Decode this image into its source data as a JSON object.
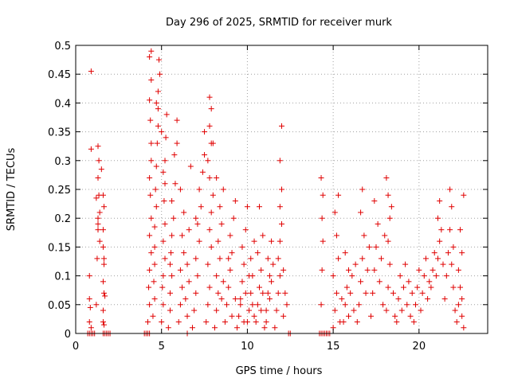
{
  "chart_data": {
    "type": "scatter",
    "title": "Day 296 of 2025, SRMTID for receiver murk",
    "xlabel": "GPS time / hours",
    "ylabel": "SRMTID / TECUs",
    "xlim": [
      0,
      24
    ],
    "ylim": [
      0,
      0.5
    ],
    "x_ticks": [
      "0",
      "5",
      "10",
      "15",
      "20"
    ],
    "y_ticks": [
      "0",
      "0.05",
      "0.1",
      "0.15",
      "0.2",
      "0.25",
      "0.3",
      "0.35",
      "0.4",
      "0.45",
      "0.5"
    ],
    "grid": true,
    "marker": "+",
    "color": "#e00000",
    "points": [
      [
        0.7,
        0.0
      ],
      [
        0.8,
        0.0
      ],
      [
        0.9,
        0.0
      ],
      [
        1.0,
        0.0
      ],
      [
        1.1,
        0.0
      ],
      [
        0.8,
        0.02
      ],
      [
        0.8,
        0.06
      ],
      [
        0.8,
        0.1
      ],
      [
        0.9,
        0.32
      ],
      [
        0.9,
        0.455
      ],
      [
        0.85,
        0.045
      ],
      [
        0.9,
        0.01
      ],
      [
        1.2,
        0.05
      ],
      [
        1.25,
        0.13
      ],
      [
        1.3,
        0.18
      ],
      [
        1.3,
        0.2
      ],
      [
        1.35,
        0.24
      ],
      [
        1.3,
        0.27
      ],
      [
        1.35,
        0.3
      ],
      [
        1.3,
        0.325
      ],
      [
        1.4,
        0.21
      ],
      [
        1.4,
        0.16
      ],
      [
        1.2,
        0.235
      ],
      [
        1.3,
        0.19
      ],
      [
        1.6,
        0.0
      ],
      [
        1.7,
        0.0
      ],
      [
        1.8,
        0.0
      ],
      [
        1.9,
        0.0
      ],
      [
        2.0,
        0.0
      ],
      [
        1.6,
        0.02
      ],
      [
        1.6,
        0.04
      ],
      [
        1.65,
        0.07
      ],
      [
        1.6,
        0.09
      ],
      [
        1.65,
        0.12
      ],
      [
        1.6,
        0.15
      ],
      [
        1.6,
        0.18
      ],
      [
        1.65,
        0.22
      ],
      [
        1.6,
        0.24
      ],
      [
        1.5,
        0.285
      ],
      [
        1.65,
        0.015
      ],
      [
        1.7,
        0.065
      ],
      [
        1.65,
        0.13
      ],
      [
        4.0,
        0.0
      ],
      [
        4.1,
        0.0
      ],
      [
        4.2,
        0.0
      ],
      [
        4.3,
        0.0
      ],
      [
        4.2,
        0.02
      ],
      [
        4.3,
        0.05
      ],
      [
        4.25,
        0.08
      ],
      [
        4.3,
        0.11
      ],
      [
        4.4,
        0.14
      ],
      [
        4.3,
        0.17
      ],
      [
        4.4,
        0.2
      ],
      [
        4.35,
        0.24
      ],
      [
        4.3,
        0.27
      ],
      [
        4.4,
        0.3
      ],
      [
        4.4,
        0.33
      ],
      [
        4.35,
        0.37
      ],
      [
        4.3,
        0.405
      ],
      [
        4.4,
        0.44
      ],
      [
        4.4,
        0.49
      ],
      [
        4.3,
        0.48
      ],
      [
        4.5,
        0.03
      ],
      [
        4.6,
        0.06
      ],
      [
        4.55,
        0.09
      ],
      [
        4.6,
        0.12
      ],
      [
        4.6,
        0.15
      ],
      [
        4.6,
        0.185
      ],
      [
        4.7,
        0.22
      ],
      [
        4.65,
        0.25
      ],
      [
        4.7,
        0.29
      ],
      [
        4.75,
        0.33
      ],
      [
        4.8,
        0.36
      ],
      [
        4.8,
        0.39
      ],
      [
        4.8,
        0.42
      ],
      [
        4.9,
        0.45
      ],
      [
        4.85,
        0.475
      ],
      [
        4.7,
        0.4
      ],
      [
        5.0,
        0.02
      ],
      [
        5.1,
        0.05
      ],
      [
        5.05,
        0.08
      ],
      [
        5.1,
        0.1
      ],
      [
        5.2,
        0.13
      ],
      [
        5.1,
        0.16
      ],
      [
        5.2,
        0.19
      ],
      [
        5.15,
        0.23
      ],
      [
        5.2,
        0.26
      ],
      [
        5.2,
        0.3
      ],
      [
        5.25,
        0.34
      ],
      [
        5.3,
        0.38
      ],
      [
        5.0,
        0.35
      ],
      [
        5.1,
        0.28
      ],
      [
        5.4,
        0.01
      ],
      [
        5.5,
        0.04
      ],
      [
        5.5,
        0.07
      ],
      [
        5.6,
        0.1
      ],
      [
        5.55,
        0.14
      ],
      [
        5.6,
        0.17
      ],
      [
        5.7,
        0.2
      ],
      [
        5.6,
        0.23
      ],
      [
        5.8,
        0.26
      ],
      [
        5.9,
        0.33
      ],
      [
        5.9,
        0.37
      ],
      [
        5.75,
        0.31
      ],
      [
        5.5,
        0.12
      ],
      [
        6.0,
        0.02
      ],
      [
        6.1,
        0.05
      ],
      [
        6.2,
        0.08
      ],
      [
        6.1,
        0.11
      ],
      [
        6.3,
        0.14
      ],
      [
        6.2,
        0.17
      ],
      [
        6.3,
        0.21
      ],
      [
        6.1,
        0.25
      ],
      [
        6.4,
        0.06
      ],
      [
        6.5,
        0.03
      ],
      [
        6.6,
        0.09
      ],
      [
        6.5,
        0.12
      ],
      [
        6.6,
        0.18
      ],
      [
        6.5,
        0.0
      ],
      [
        6.8,
        0.01
      ],
      [
        6.9,
        0.04
      ],
      [
        7.0,
        0.07
      ],
      [
        7.1,
        0.1
      ],
      [
        7.0,
        0.13
      ],
      [
        7.2,
        0.16
      ],
      [
        7.1,
        0.19
      ],
      [
        7.3,
        0.22
      ],
      [
        7.2,
        0.25
      ],
      [
        7.4,
        0.28
      ],
      [
        7.5,
        0.31
      ],
      [
        7.5,
        0.35
      ],
      [
        6.7,
        0.29
      ],
      [
        7.0,
        0.2
      ],
      [
        7.6,
        0.02
      ],
      [
        7.7,
        0.05
      ],
      [
        7.8,
        0.08
      ],
      [
        7.7,
        0.12
      ],
      [
        7.9,
        0.15
      ],
      [
        7.8,
        0.18
      ],
      [
        7.9,
        0.21
      ],
      [
        8.0,
        0.24
      ],
      [
        7.8,
        0.27
      ],
      [
        7.7,
        0.3
      ],
      [
        7.9,
        0.33
      ],
      [
        7.8,
        0.36
      ],
      [
        7.9,
        0.39
      ],
      [
        7.8,
        0.41
      ],
      [
        8.0,
        0.33
      ],
      [
        8.1,
        0.01
      ],
      [
        8.2,
        0.04
      ],
      [
        8.3,
        0.07
      ],
      [
        8.2,
        0.1
      ],
      [
        8.4,
        0.13
      ],
      [
        8.3,
        0.16
      ],
      [
        8.5,
        0.19
      ],
      [
        8.4,
        0.22
      ],
      [
        8.6,
        0.25
      ],
      [
        8.2,
        0.27
      ],
      [
        8.5,
        0.06
      ],
      [
        8.6,
        0.09
      ],
      [
        8.7,
        0.02
      ],
      [
        8.8,
        0.05
      ],
      [
        8.9,
        0.08
      ],
      [
        9.0,
        0.11
      ],
      [
        9.1,
        0.14
      ],
      [
        9.0,
        0.17
      ],
      [
        9.2,
        0.2
      ],
      [
        9.3,
        0.23
      ],
      [
        8.9,
        0.13
      ],
      [
        9.3,
        0.06
      ],
      [
        9.1,
        0.03
      ],
      [
        9.4,
        0.01
      ],
      [
        9.5,
        0.03
      ],
      [
        9.6,
        0.06
      ],
      [
        9.7,
        0.09
      ],
      [
        9.8,
        0.12
      ],
      [
        9.7,
        0.15
      ],
      [
        9.9,
        0.18
      ],
      [
        9.6,
        0.05
      ],
      [
        9.8,
        0.02
      ],
      [
        9.9,
        0.07
      ],
      [
        10.0,
        0.02
      ],
      [
        10.1,
        0.04
      ],
      [
        10.2,
        0.07
      ],
      [
        10.3,
        0.1
      ],
      [
        10.2,
        0.13
      ],
      [
        10.4,
        0.16
      ],
      [
        10.0,
        0.22
      ],
      [
        10.1,
        0.1
      ],
      [
        10.3,
        0.05
      ],
      [
        10.4,
        0.03
      ],
      [
        10.5,
        0.02
      ],
      [
        10.6,
        0.05
      ],
      [
        10.7,
        0.08
      ],
      [
        10.8,
        0.11
      ],
      [
        10.6,
        0.14
      ],
      [
        10.9,
        0.17
      ],
      [
        10.7,
        0.22
      ],
      [
        10.8,
        0.04
      ],
      [
        10.9,
        0.07
      ],
      [
        11.0,
        0.01
      ],
      [
        11.1,
        0.04
      ],
      [
        11.2,
        0.07
      ],
      [
        11.3,
        0.1
      ],
      [
        11.2,
        0.13
      ],
      [
        11.4,
        0.16
      ],
      [
        11.5,
        0.12
      ],
      [
        11.3,
        0.06
      ],
      [
        11.1,
        0.02
      ],
      [
        11.4,
        0.09
      ],
      [
        11.6,
        0.01
      ],
      [
        11.7,
        0.04
      ],
      [
        11.8,
        0.07
      ],
      [
        11.9,
        0.1
      ],
      [
        11.8,
        0.13
      ],
      [
        11.9,
        0.16
      ],
      [
        12.0,
        0.19
      ],
      [
        11.9,
        0.22
      ],
      [
        12.0,
        0.25
      ],
      [
        11.9,
        0.3
      ],
      [
        12.0,
        0.36
      ],
      [
        12.1,
        0.03
      ],
      [
        12.2,
        0.07
      ],
      [
        12.3,
        0.05
      ],
      [
        12.1,
        0.11
      ],
      [
        12.4,
        0.0
      ],
      [
        12.5,
        0.0
      ],
      [
        14.2,
        0.0
      ],
      [
        14.3,
        0.0
      ],
      [
        14.4,
        0.0
      ],
      [
        14.5,
        0.0
      ],
      [
        14.6,
        0.0
      ],
      [
        14.7,
        0.0
      ],
      [
        14.8,
        0.0
      ],
      [
        14.3,
        0.05
      ],
      [
        14.35,
        0.11
      ],
      [
        14.4,
        0.16
      ],
      [
        14.35,
        0.2
      ],
      [
        14.4,
        0.24
      ],
      [
        14.3,
        0.27
      ],
      [
        15.0,
        0.01
      ],
      [
        15.1,
        0.04
      ],
      [
        15.2,
        0.07
      ],
      [
        15.0,
        0.1
      ],
      [
        15.3,
        0.13
      ],
      [
        15.2,
        0.17
      ],
      [
        15.1,
        0.21
      ],
      [
        15.3,
        0.24
      ],
      [
        15.4,
        0.02
      ],
      [
        15.5,
        0.06
      ],
      [
        15.6,
        0.02
      ],
      [
        15.7,
        0.05
      ],
      [
        15.8,
        0.08
      ],
      [
        15.9,
        0.11
      ],
      [
        15.7,
        0.14
      ],
      [
        15.9,
        0.03
      ],
      [
        16.0,
        0.07
      ],
      [
        16.1,
        0.1
      ],
      [
        16.2,
        0.04
      ],
      [
        16.3,
        0.12
      ],
      [
        16.4,
        0.02
      ],
      [
        16.5,
        0.05
      ],
      [
        16.6,
        0.09
      ],
      [
        16.7,
        0.13
      ],
      [
        16.8,
        0.17
      ],
      [
        16.6,
        0.21
      ],
      [
        16.7,
        0.25
      ],
      [
        16.9,
        0.07
      ],
      [
        17.0,
        0.11
      ],
      [
        17.1,
        0.15
      ],
      [
        17.2,
        0.03
      ],
      [
        17.3,
        0.07
      ],
      [
        17.4,
        0.11
      ],
      [
        17.5,
        0.15
      ],
      [
        17.6,
        0.19
      ],
      [
        17.4,
        0.23
      ],
      [
        17.7,
        0.09
      ],
      [
        17.8,
        0.13
      ],
      [
        17.9,
        0.05
      ],
      [
        18.0,
        0.17
      ],
      [
        18.1,
        0.04
      ],
      [
        18.2,
        0.08
      ],
      [
        18.3,
        0.12
      ],
      [
        18.2,
        0.16
      ],
      [
        18.3,
        0.2
      ],
      [
        18.2,
        0.24
      ],
      [
        18.1,
        0.27
      ],
      [
        18.4,
        0.22
      ],
      [
        18.5,
        0.07
      ],
      [
        18.6,
        0.03
      ],
      [
        18.7,
        0.02
      ],
      [
        18.8,
        0.06
      ],
      [
        18.9,
        0.1
      ],
      [
        19.0,
        0.04
      ],
      [
        19.1,
        0.08
      ],
      [
        19.2,
        0.12
      ],
      [
        19.3,
        0.05
      ],
      [
        19.4,
        0.09
      ],
      [
        19.5,
        0.03
      ],
      [
        19.6,
        0.07
      ],
      [
        19.7,
        0.02
      ],
      [
        19.8,
        0.05
      ],
      [
        19.9,
        0.08
      ],
      [
        20.0,
        0.11
      ],
      [
        20.1,
        0.04
      ],
      [
        20.2,
        0.07
      ],
      [
        20.3,
        0.1
      ],
      [
        20.4,
        0.13
      ],
      [
        20.5,
        0.06
      ],
      [
        20.6,
        0.09
      ],
      [
        20.7,
        0.08
      ],
      [
        20.8,
        0.11
      ],
      [
        20.9,
        0.14
      ],
      [
        21.0,
        0.1
      ],
      [
        21.1,
        0.13
      ],
      [
        21.2,
        0.16
      ],
      [
        21.1,
        0.2
      ],
      [
        21.2,
        0.23
      ],
      [
        21.3,
        0.18
      ],
      [
        21.4,
        0.12
      ],
      [
        21.5,
        0.06
      ],
      [
        21.6,
        0.1
      ],
      [
        21.7,
        0.14
      ],
      [
        21.8,
        0.18
      ],
      [
        21.9,
        0.22
      ],
      [
        21.8,
        0.25
      ],
      [
        21.9,
        0.12
      ],
      [
        22.0,
        0.08
      ],
      [
        22.1,
        0.04
      ],
      [
        22.0,
        0.15
      ],
      [
        22.2,
        0.02
      ],
      [
        22.3,
        0.05
      ],
      [
        22.4,
        0.08
      ],
      [
        22.3,
        0.11
      ],
      [
        22.5,
        0.14
      ],
      [
        22.4,
        0.18
      ],
      [
        22.6,
        0.01
      ],
      [
        22.5,
        0.03
      ],
      [
        22.6,
        0.24
      ],
      [
        22.5,
        0.06
      ]
    ]
  }
}
